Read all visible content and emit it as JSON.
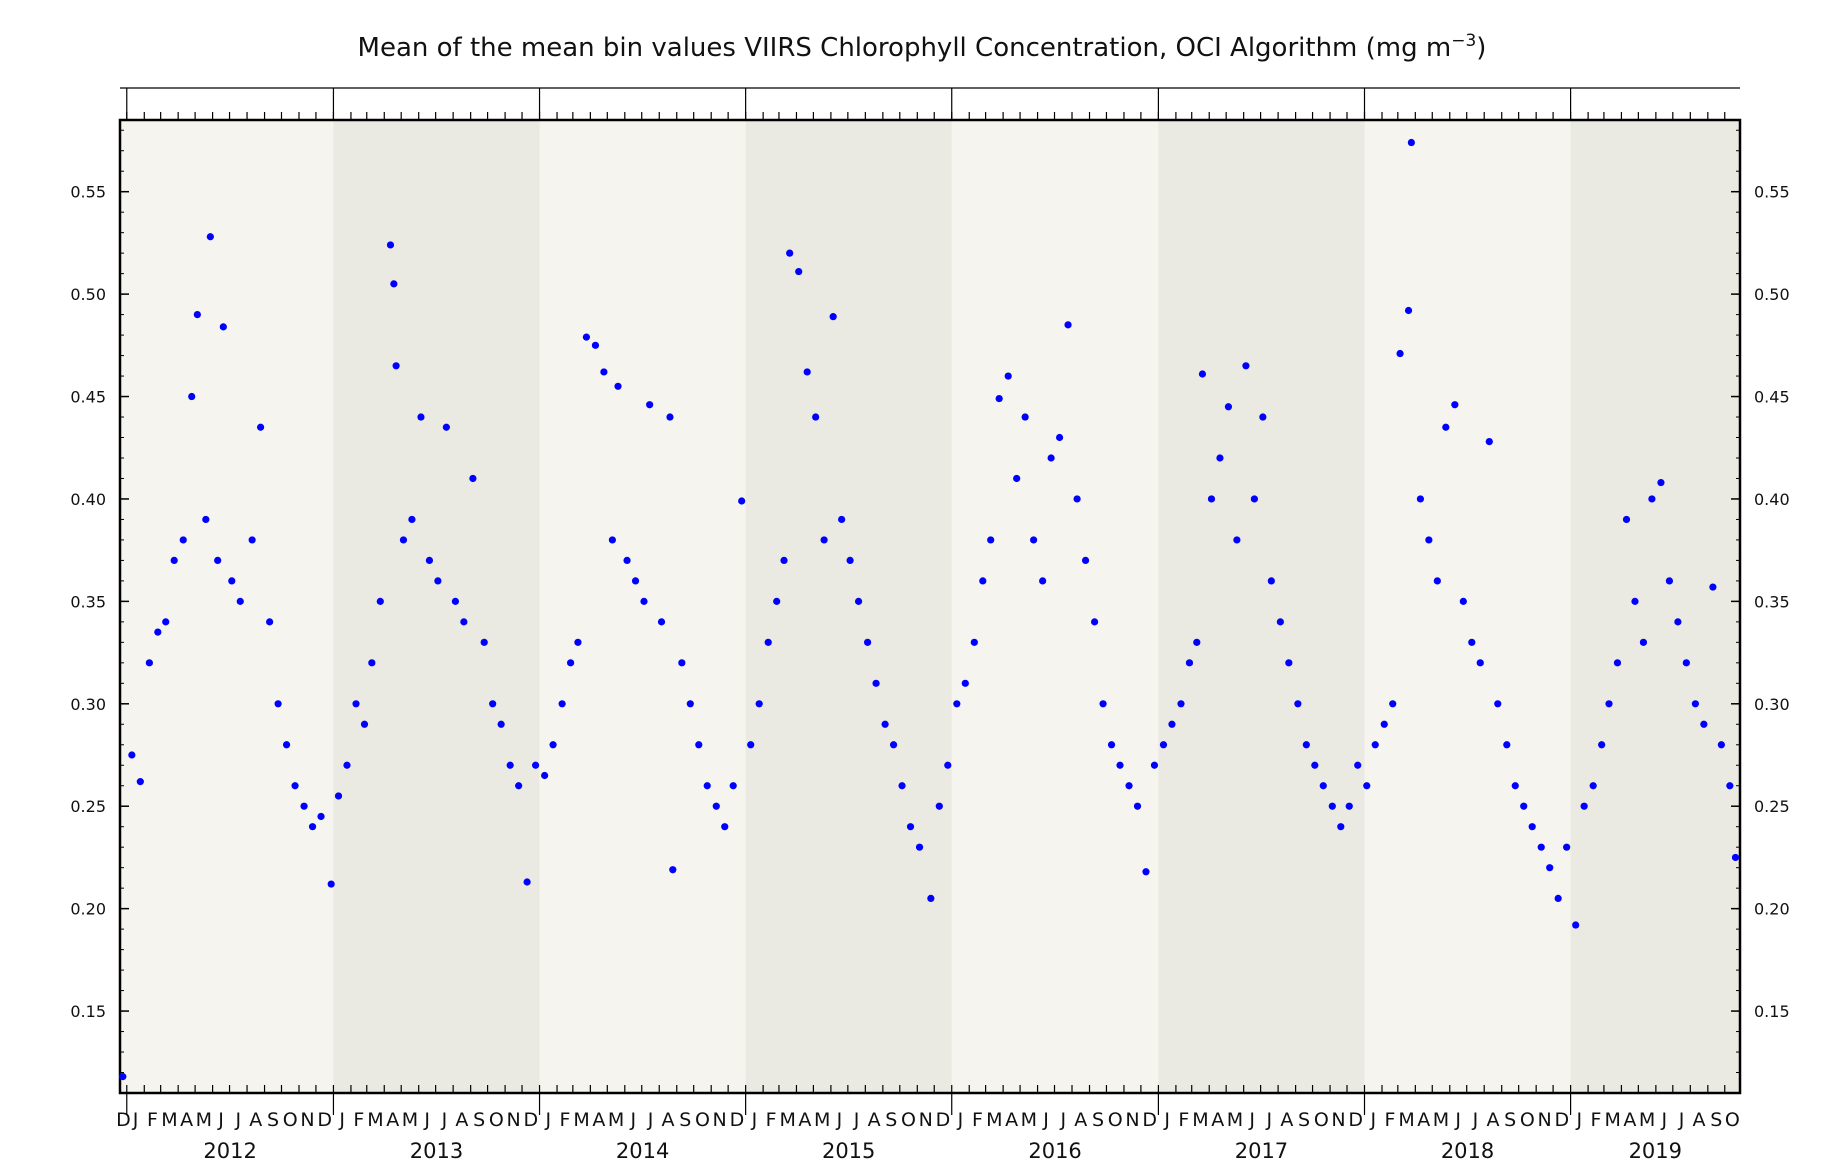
{
  "chart_data": {
    "type": "scatter",
    "title": "Mean of the mean bin values VIIRS Chlorophyll Concentration, OCI Algorithm (mg m",
    "title_superscript": "−3",
    "title_suffix": ")",
    "xlabel": "",
    "ylabel": "",
    "x_range": [
      "2011-12-20",
      "2019-10-28"
    ],
    "ylim": [
      0.11,
      0.585
    ],
    "y_ticks": [
      "0.15",
      "0.20",
      "0.25",
      "0.30",
      "0.35",
      "0.40",
      "0.45",
      "0.50",
      "0.55"
    ],
    "x_year_labels": [
      "2012",
      "2013",
      "2014",
      "2015",
      "2016",
      "2017",
      "2018",
      "2019"
    ],
    "x_month_labels": [
      "J",
      "F",
      "M",
      "A",
      "M",
      "J",
      "J",
      "A",
      "S",
      "O",
      "N",
      "D"
    ],
    "x_leading_label": "D",
    "grid": false,
    "colors": {
      "points": "#0000ff",
      "band_light": "#f5f4ee",
      "band_dark": "#eae9e2",
      "axis": "#000000"
    },
    "series": [
      {
        "points": [
          [
            "2011-12-25",
            0.118
          ],
          [
            "2012-01-10",
            0.275
          ],
          [
            "2012-01-25",
            0.262
          ],
          [
            "2012-02-10",
            0.32
          ],
          [
            "2012-02-25",
            0.335
          ],
          [
            "2012-03-10",
            0.34
          ],
          [
            "2012-03-25",
            0.37
          ],
          [
            "2012-04-10",
            0.38
          ],
          [
            "2012-04-25",
            0.45
          ],
          [
            "2012-05-05",
            0.49
          ],
          [
            "2012-05-20",
            0.39
          ],
          [
            "2012-05-28",
            0.528
          ],
          [
            "2012-06-10",
            0.37
          ],
          [
            "2012-06-20",
            0.484
          ],
          [
            "2012-07-05",
            0.36
          ],
          [
            "2012-07-20",
            0.35
          ],
          [
            "2012-08-10",
            0.38
          ],
          [
            "2012-08-25",
            0.435
          ],
          [
            "2012-09-10",
            0.34
          ],
          [
            "2012-09-25",
            0.3
          ],
          [
            "2012-10-10",
            0.28
          ],
          [
            "2012-10-25",
            0.26
          ],
          [
            "2012-11-10",
            0.25
          ],
          [
            "2012-11-25",
            0.24
          ],
          [
            "2012-12-10",
            0.245
          ],
          [
            "2012-12-28",
            0.212
          ],
          [
            "2013-01-10",
            0.255
          ],
          [
            "2013-01-25",
            0.27
          ],
          [
            "2013-02-10",
            0.3
          ],
          [
            "2013-02-25",
            0.29
          ],
          [
            "2013-03-10",
            0.32
          ],
          [
            "2013-03-25",
            0.35
          ],
          [
            "2013-04-12",
            0.524
          ],
          [
            "2013-04-18",
            0.505
          ],
          [
            "2013-04-22",
            0.465
          ],
          [
            "2013-05-05",
            0.38
          ],
          [
            "2013-05-20",
            0.39
          ],
          [
            "2013-06-05",
            0.44
          ],
          [
            "2013-06-20",
            0.37
          ],
          [
            "2013-07-05",
            0.36
          ],
          [
            "2013-07-20",
            0.435
          ],
          [
            "2013-08-05",
            0.35
          ],
          [
            "2013-08-20",
            0.34
          ],
          [
            "2013-09-05",
            0.41
          ],
          [
            "2013-09-25",
            0.33
          ],
          [
            "2013-10-10",
            0.3
          ],
          [
            "2013-10-25",
            0.29
          ],
          [
            "2013-11-10",
            0.27
          ],
          [
            "2013-11-25",
            0.26
          ],
          [
            "2013-12-10",
            0.213
          ],
          [
            "2013-12-25",
            0.27
          ],
          [
            "2014-01-10",
            0.265
          ],
          [
            "2014-01-25",
            0.28
          ],
          [
            "2014-02-10",
            0.3
          ],
          [
            "2014-02-25",
            0.32
          ],
          [
            "2014-03-10",
            0.33
          ],
          [
            "2014-03-25",
            0.479
          ],
          [
            "2014-04-10",
            0.475
          ],
          [
            "2014-04-25",
            0.462
          ],
          [
            "2014-05-10",
            0.38
          ],
          [
            "2014-05-20",
            0.455
          ],
          [
            "2014-06-05",
            0.37
          ],
          [
            "2014-06-20",
            0.36
          ],
          [
            "2014-07-05",
            0.35
          ],
          [
            "2014-07-15",
            0.446
          ],
          [
            "2014-08-05",
            0.34
          ],
          [
            "2014-08-20",
            0.44
          ],
          [
            "2014-08-25",
            0.219
          ],
          [
            "2014-09-10",
            0.32
          ],
          [
            "2014-09-25",
            0.3
          ],
          [
            "2014-10-10",
            0.28
          ],
          [
            "2014-10-25",
            0.26
          ],
          [
            "2014-11-10",
            0.25
          ],
          [
            "2014-11-25",
            0.24
          ],
          [
            "2014-12-10",
            0.26
          ],
          [
            "2014-12-25",
            0.399
          ],
          [
            "2015-01-10",
            0.28
          ],
          [
            "2015-01-25",
            0.3
          ],
          [
            "2015-02-10",
            0.33
          ],
          [
            "2015-02-25",
            0.35
          ],
          [
            "2015-03-10",
            0.37
          ],
          [
            "2015-03-20",
            0.52
          ],
          [
            "2015-04-05",
            0.511
          ],
          [
            "2015-04-20",
            0.462
          ],
          [
            "2015-05-05",
            0.44
          ],
          [
            "2015-05-20",
            0.38
          ],
          [
            "2015-06-05",
            0.489
          ],
          [
            "2015-06-20",
            0.39
          ],
          [
            "2015-07-05",
            0.37
          ],
          [
            "2015-07-20",
            0.35
          ],
          [
            "2015-08-05",
            0.33
          ],
          [
            "2015-08-20",
            0.31
          ],
          [
            "2015-09-05",
            0.29
          ],
          [
            "2015-09-20",
            0.28
          ],
          [
            "2015-10-05",
            0.26
          ],
          [
            "2015-10-20",
            0.24
          ],
          [
            "2015-11-05",
            0.23
          ],
          [
            "2015-11-25",
            0.205
          ],
          [
            "2015-12-10",
            0.25
          ],
          [
            "2015-12-25",
            0.27
          ],
          [
            "2016-01-10",
            0.3
          ],
          [
            "2016-01-25",
            0.31
          ],
          [
            "2016-02-10",
            0.33
          ],
          [
            "2016-02-25",
            0.36
          ],
          [
            "2016-03-10",
            0.38
          ],
          [
            "2016-03-25",
            0.449
          ],
          [
            "2016-04-10",
            0.46
          ],
          [
            "2016-04-25",
            0.41
          ],
          [
            "2016-05-10",
            0.44
          ],
          [
            "2016-05-25",
            0.38
          ],
          [
            "2016-06-10",
            0.36
          ],
          [
            "2016-06-25",
            0.42
          ],
          [
            "2016-07-10",
            0.43
          ],
          [
            "2016-07-25",
            0.485
          ],
          [
            "2016-08-10",
            0.4
          ],
          [
            "2016-08-25",
            0.37
          ],
          [
            "2016-09-10",
            0.34
          ],
          [
            "2016-09-25",
            0.3
          ],
          [
            "2016-10-10",
            0.28
          ],
          [
            "2016-10-25",
            0.27
          ],
          [
            "2016-11-10",
            0.26
          ],
          [
            "2016-11-25",
            0.25
          ],
          [
            "2016-12-10",
            0.218
          ],
          [
            "2016-12-25",
            0.27
          ],
          [
            "2017-01-10",
            0.28
          ],
          [
            "2017-01-25",
            0.29
          ],
          [
            "2017-02-10",
            0.3
          ],
          [
            "2017-02-25",
            0.32
          ],
          [
            "2017-03-10",
            0.33
          ],
          [
            "2017-03-20",
            0.461
          ],
          [
            "2017-04-05",
            0.4
          ],
          [
            "2017-04-20",
            0.42
          ],
          [
            "2017-05-05",
            0.445
          ],
          [
            "2017-05-20",
            0.38
          ],
          [
            "2017-06-05",
            0.465
          ],
          [
            "2017-06-20",
            0.4
          ],
          [
            "2017-07-05",
            0.44
          ],
          [
            "2017-07-20",
            0.36
          ],
          [
            "2017-08-05",
            0.34
          ],
          [
            "2017-08-20",
            0.32
          ],
          [
            "2017-09-05",
            0.3
          ],
          [
            "2017-09-20",
            0.28
          ],
          [
            "2017-10-05",
            0.27
          ],
          [
            "2017-10-20",
            0.26
          ],
          [
            "2017-11-05",
            0.25
          ],
          [
            "2017-11-20",
            0.24
          ],
          [
            "2017-12-05",
            0.25
          ],
          [
            "2017-12-20",
            0.27
          ],
          [
            "2018-01-05",
            0.26
          ],
          [
            "2018-01-20",
            0.28
          ],
          [
            "2018-02-05",
            0.29
          ],
          [
            "2018-02-20",
            0.3
          ],
          [
            "2018-03-05",
            0.471
          ],
          [
            "2018-03-20",
            0.492
          ],
          [
            "2018-03-25",
            0.574
          ],
          [
            "2018-04-10",
            0.4
          ],
          [
            "2018-04-25",
            0.38
          ],
          [
            "2018-05-10",
            0.36
          ],
          [
            "2018-05-25",
            0.435
          ],
          [
            "2018-06-10",
            0.446
          ],
          [
            "2018-06-25",
            0.35
          ],
          [
            "2018-07-10",
            0.33
          ],
          [
            "2018-07-25",
            0.32
          ],
          [
            "2018-08-10",
            0.428
          ],
          [
            "2018-08-25",
            0.3
          ],
          [
            "2018-09-10",
            0.28
          ],
          [
            "2018-09-25",
            0.26
          ],
          [
            "2018-10-10",
            0.25
          ],
          [
            "2018-10-25",
            0.24
          ],
          [
            "2018-11-10",
            0.23
          ],
          [
            "2018-11-25",
            0.22
          ],
          [
            "2018-12-10",
            0.205
          ],
          [
            "2018-12-25",
            0.23
          ],
          [
            "2019-01-10",
            0.192
          ],
          [
            "2019-01-25",
            0.25
          ],
          [
            "2019-02-10",
            0.26
          ],
          [
            "2019-02-25",
            0.28
          ],
          [
            "2019-03-10",
            0.3
          ],
          [
            "2019-03-25",
            0.32
          ],
          [
            "2019-04-10",
            0.39
          ],
          [
            "2019-04-25",
            0.35
          ],
          [
            "2019-05-10",
            0.33
          ],
          [
            "2019-05-25",
            0.4
          ],
          [
            "2019-06-10",
            0.408
          ],
          [
            "2019-06-25",
            0.36
          ],
          [
            "2019-07-10",
            0.34
          ],
          [
            "2019-07-25",
            0.32
          ],
          [
            "2019-08-10",
            0.3
          ],
          [
            "2019-08-25",
            0.29
          ],
          [
            "2019-09-10",
            0.357
          ],
          [
            "2019-09-25",
            0.28
          ],
          [
            "2019-10-10",
            0.26
          ],
          [
            "2019-10-20",
            0.225
          ]
        ]
      }
    ]
  }
}
